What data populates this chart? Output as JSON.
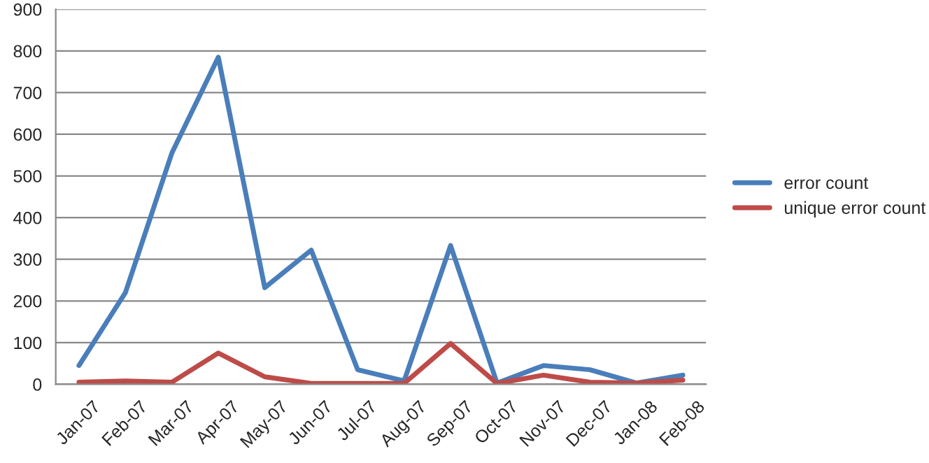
{
  "chart_data": {
    "type": "line",
    "categories": [
      "Jan-07",
      "Feb-07",
      "Mar-07",
      "Apr-07",
      "May-07",
      "Jun-07",
      "Jul-07",
      "Aug-07",
      "Sep-07",
      "Oct-07",
      "Nov-07",
      "Dec-07",
      "Jan-08",
      "Feb-08"
    ],
    "series": [
      {
        "name": "error count",
        "color": "#4a7ebb",
        "values": [
          45,
          220,
          555,
          785,
          232,
          322,
          35,
          8,
          333,
          3,
          45,
          35,
          3,
          22
        ]
      },
      {
        "name": "unique error count",
        "color": "#be4b48",
        "values": [
          5,
          8,
          5,
          75,
          18,
          2,
          2,
          2,
          98,
          2,
          22,
          5,
          3,
          10
        ]
      }
    ],
    "ylim": [
      0,
      900
    ],
    "yticks": [
      0,
      100,
      200,
      300,
      400,
      500,
      600,
      700,
      800,
      900
    ],
    "grid": "y",
    "legend": "right",
    "marker": "none",
    "line_style": "solid"
  }
}
